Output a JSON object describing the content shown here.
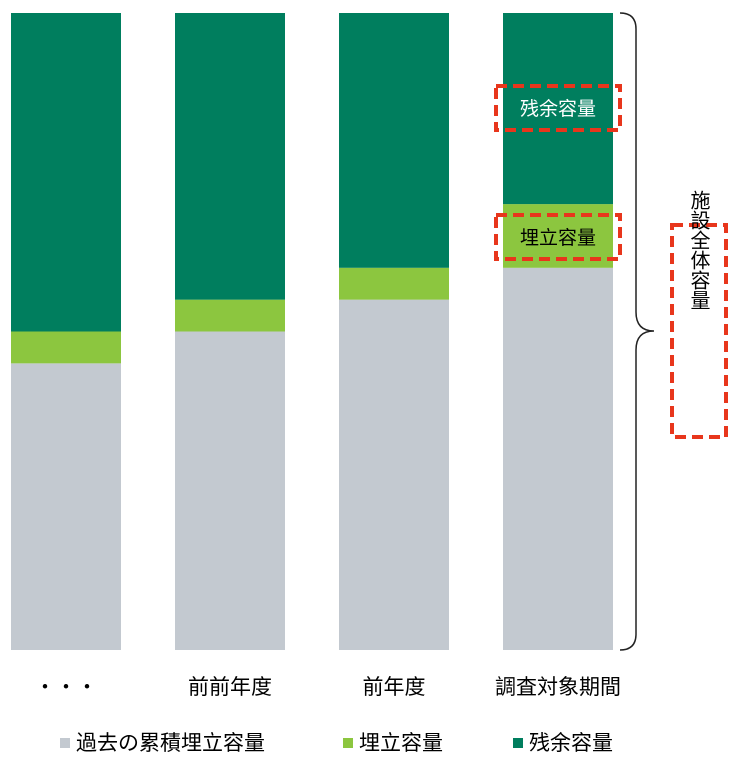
{
  "chart_data": {
    "type": "bar",
    "stacked": true,
    "orientation": "vertical",
    "categories": [
      "・・・",
      "前前年度",
      "前年度",
      "調査対象期間"
    ],
    "series": [
      {
        "name": "過去の累積埋立容量",
        "color": "#c3c9d0",
        "values": [
          0.45,
          0.5,
          0.55,
          0.6
        ]
      },
      {
        "name": "埋立容量",
        "color": "#8cc63f",
        "values": [
          0.05,
          0.05,
          0.05,
          0.1
        ]
      },
      {
        "name": "残余容量",
        "color": "#007e5e",
        "values": [
          0.5,
          0.45,
          0.4,
          0.3
        ]
      }
    ],
    "ylim": [
      0,
      1
    ],
    "grid": false,
    "legend": "bottom",
    "annotations": {
      "remaining": "残余容量",
      "landfill": "埋立容量",
      "total": "施設全体容量"
    },
    "highlight_color": "#e8361c"
  }
}
